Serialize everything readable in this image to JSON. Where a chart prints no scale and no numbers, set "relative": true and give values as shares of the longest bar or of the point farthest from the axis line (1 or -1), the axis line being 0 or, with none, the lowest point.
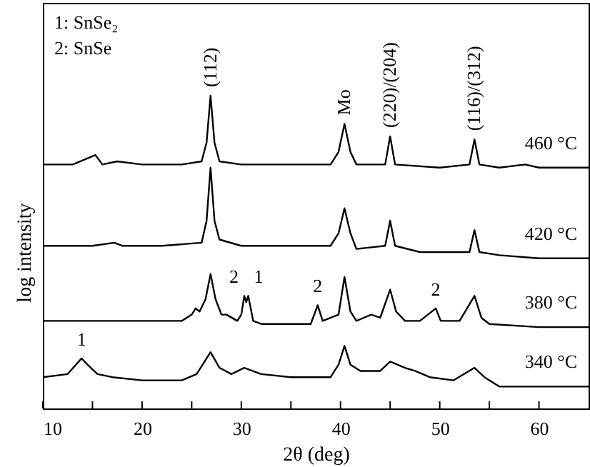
{
  "chart_data": {
    "type": "line",
    "relative": true,
    "xlabel": "2θ (deg)",
    "ylabel": "log intensity",
    "xlim": [
      10,
      65
    ],
    "xticks": [
      10,
      {
        "value": 15,
        "label": null
      },
      20,
      {
        "value": 25,
        "label": null
      },
      30,
      {
        "value": 35,
        "label": null
      },
      40,
      {
        "value": 45,
        "label": null
      },
      50,
      {
        "value": 55,
        "label": null
      },
      60
    ],
    "tick_labels": "x",
    "grid": false,
    "marker": "none",
    "line_style": "solid",
    "annotations": [
      "1: SnSe₂",
      "2: SnSe",
      {
        "text": "(112)",
        "x": 26.9,
        "y": 1.0
      },
      {
        "text": "Mo",
        "x": 40.4,
        "y": 0.91
      },
      {
        "text": "(220)/(204)",
        "x": 45.0,
        "y": 0.87
      },
      {
        "text": "(116)/(312)",
        "x": 53.5,
        "y": 0.86
      },
      {
        "text": "1",
        "x": 13.9,
        "y": 0.16
      },
      {
        "text": "2",
        "x": 30.3,
        "y": 0.36
      },
      {
        "text": "1",
        "x": 30.7,
        "y": 0.36
      },
      {
        "text": "2",
        "x": 37.7,
        "y": 0.33
      },
      {
        "text": "2",
        "x": 49.6,
        "y": 0.32
      }
    ],
    "series": [
      {
        "name": "460 °C",
        "color": "#000000",
        "x": [
          10,
          13,
          15.3,
          16,
          17.5,
          20,
          24,
          26,
          26.5,
          26.9,
          27.3,
          27.8,
          30,
          35,
          39,
          39.8,
          40.4,
          41,
          41.6,
          44.5,
          45.0,
          45.5,
          50,
          53,
          53.5,
          54,
          56,
          58.6,
          60,
          65
        ],
        "values": [
          0.78,
          0.78,
          0.81,
          0.78,
          0.79,
          0.78,
          0.78,
          0.79,
          0.85,
          1.0,
          0.85,
          0.79,
          0.78,
          0.78,
          0.78,
          0.82,
          0.91,
          0.82,
          0.78,
          0.78,
          0.87,
          0.78,
          0.77,
          0.78,
          0.86,
          0.78,
          0.77,
          0.78,
          0.77,
          0.77
        ]
      },
      {
        "name": "420 °C",
        "color": "#000000",
        "x": [
          10,
          15,
          17.2,
          18,
          22,
          26,
          26.5,
          26.9,
          27.3,
          27.8,
          30,
          35,
          39,
          39.8,
          40.4,
          41,
          41.6,
          44.5,
          45.0,
          45.5,
          48,
          53,
          53.5,
          54,
          56,
          60,
          65
        ],
        "values": [
          0.52,
          0.52,
          0.53,
          0.52,
          0.52,
          0.53,
          0.6,
          0.77,
          0.6,
          0.54,
          0.52,
          0.52,
          0.52,
          0.56,
          0.64,
          0.56,
          0.51,
          0.52,
          0.6,
          0.52,
          0.5,
          0.5,
          0.57,
          0.5,
          0.49,
          0.48,
          0.48
        ]
      },
      {
        "name": "380 °C",
        "color": "#000000",
        "x": [
          10,
          15,
          20,
          24,
          25,
          25.4,
          25.8,
          26.4,
          26.9,
          27.4,
          28,
          28.5,
          29.6,
          30.0,
          30.3,
          30.5,
          30.7,
          31.2,
          32,
          37,
          37.7,
          38.2,
          39.8,
          40.4,
          41,
          41.6,
          43.1,
          44,
          45.0,
          45.6,
          46.5,
          48,
          49.6,
          50.1,
          52,
          53.5,
          54.2,
          55,
          60,
          65
        ],
        "values": [
          0.28,
          0.28,
          0.28,
          0.28,
          0.3,
          0.32,
          0.31,
          0.35,
          0.43,
          0.35,
          0.3,
          0.3,
          0.28,
          0.3,
          0.36,
          0.34,
          0.36,
          0.28,
          0.27,
          0.27,
          0.33,
          0.28,
          0.3,
          0.42,
          0.31,
          0.28,
          0.3,
          0.29,
          0.38,
          0.31,
          0.28,
          0.28,
          0.32,
          0.28,
          0.28,
          0.36,
          0.29,
          0.27,
          0.26,
          0.26
        ]
      },
      {
        "name": "340 °C",
        "color": "#000000",
        "x": [
          10,
          12.5,
          13.9,
          14.5,
          15.5,
          17,
          20,
          24,
          25.5,
          26.9,
          27.8,
          29,
          30.3,
          32,
          35,
          39,
          39.8,
          40.4,
          41,
          42,
          44,
          45,
          46.5,
          47.5,
          49,
          51.4,
          53.5,
          54.5,
          56,
          60,
          65
        ],
        "values": [
          0.1,
          0.11,
          0.16,
          0.14,
          0.11,
          0.1,
          0.09,
          0.09,
          0.11,
          0.18,
          0.13,
          0.11,
          0.13,
          0.11,
          0.1,
          0.1,
          0.14,
          0.2,
          0.14,
          0.12,
          0.12,
          0.15,
          0.13,
          0.12,
          0.1,
          0.09,
          0.13,
          0.1,
          0.07,
          0.07,
          0.07
        ]
      }
    ]
  }
}
